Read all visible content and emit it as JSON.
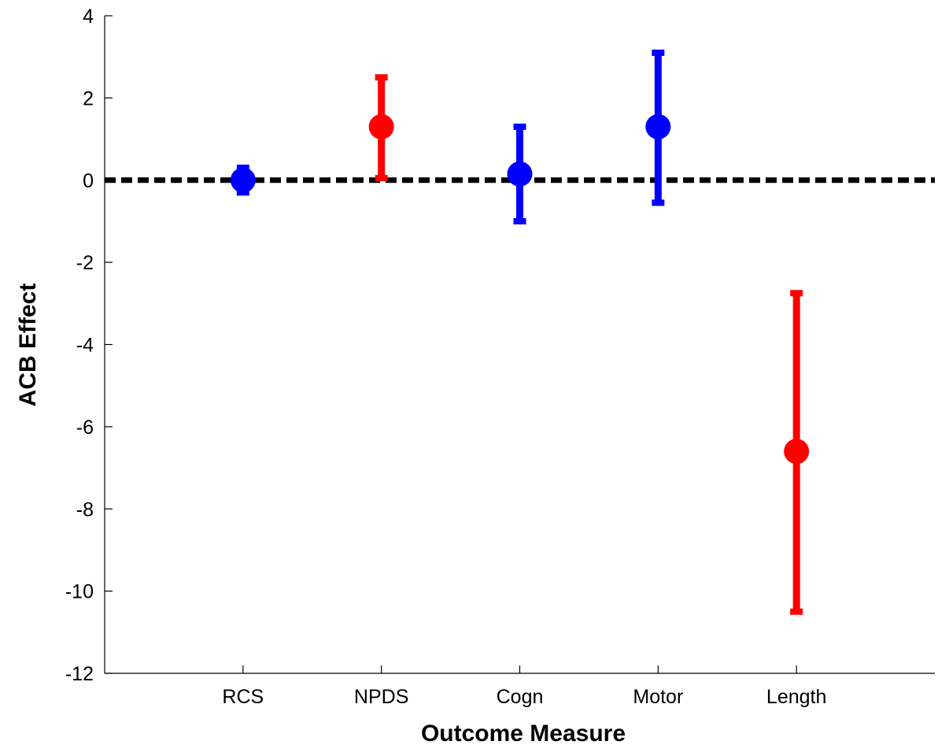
{
  "chart_data": {
    "type": "scatter",
    "title": "",
    "xlabel": "Outcome Measure",
    "ylabel": "ACB Effect",
    "ylim": [
      -12,
      4
    ],
    "yticks": [
      4,
      2,
      0,
      -2,
      -4,
      -6,
      -8,
      -10,
      -12
    ],
    "xlim": [
      0,
      6
    ],
    "categories": [
      "RCS",
      "NPDS",
      "Cogn",
      "Motor",
      "Length"
    ],
    "points": [
      {
        "category": "RCS",
        "value": 0.0,
        "lower": -0.3,
        "upper": 0.3,
        "color": "#0000ff"
      },
      {
        "category": "NPDS",
        "value": 1.3,
        "lower": 0.05,
        "upper": 2.5,
        "color": "#ff0000"
      },
      {
        "category": "Cogn",
        "value": 0.15,
        "lower": -1.0,
        "upper": 1.3,
        "color": "#0000ff"
      },
      {
        "category": "Motor",
        "value": 1.3,
        "lower": -0.55,
        "upper": 3.1,
        "color": "#0000ff"
      },
      {
        "category": "Length",
        "value": -6.6,
        "lower": -10.5,
        "upper": -2.75,
        "color": "#ff0000"
      }
    ],
    "reference_line": {
      "y": 0,
      "style": "dashed",
      "color": "#000000"
    },
    "grid": false,
    "legend": "none"
  }
}
